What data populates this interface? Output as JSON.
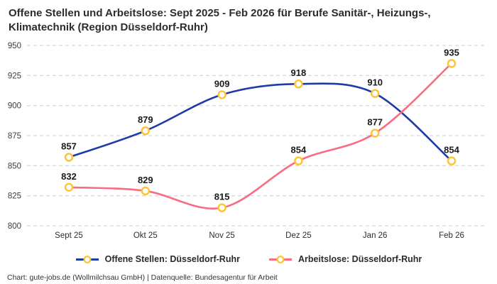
{
  "chart_data": {
    "type": "line",
    "title": "Offene Stellen und Arbeitslose: Sept 2025 - Feb 2026 für Berufe Sanitär-, Heizungs-, Klimatechnik (Region Düsseldorf-Ruhr)",
    "categories": [
      "Sept 25",
      "Okt 25",
      "Nov 25",
      "Dez 25",
      "Jan 26",
      "Feb 26"
    ],
    "series": [
      {
        "name": "Offene Stellen: Düsseldorf-Ruhr",
        "color": "#1d3ca5",
        "values": [
          857,
          879,
          909,
          918,
          910,
          854
        ]
      },
      {
        "name": "Arbeitslose: Düsseldorf-Ruhr",
        "color": "#f96c84",
        "values": [
          832,
          829,
          815,
          854,
          877,
          935
        ]
      }
    ],
    "marker": {
      "fill": "#ffffff",
      "stroke": "#fcc433"
    },
    "ylim": [
      800,
      950
    ],
    "ytick_step": 25,
    "yticks": [
      800,
      825,
      850,
      875,
      900,
      925,
      950
    ],
    "grid": "horizontal-dashed",
    "grid_color": "#cccccc",
    "label_color": "#1a1a1a",
    "tick_color": "#3d3d3d",
    "legend_position": "bottom",
    "data_labels": true
  },
  "footer": {
    "credit": "Chart: gute-jobs.de (Wollmilchsau GmbH) | Datenquelle: Bundesagentur für Arbeit"
  }
}
